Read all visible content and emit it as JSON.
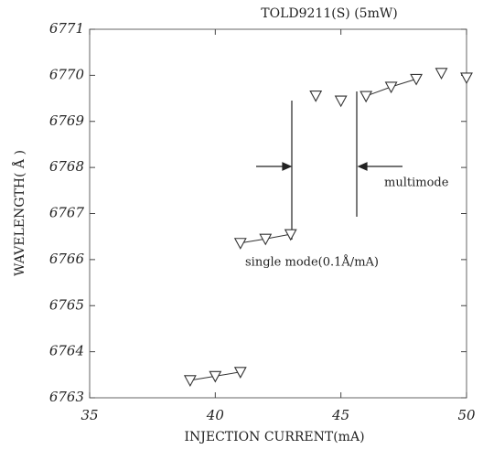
{
  "chart_data": {
    "type": "scatter",
    "title": "TOLD9211(S) (5mW)",
    "xlabel": "INJECTION CURRENT(mA)",
    "ylabel": "WAVELENGTH( Å )",
    "annotations": [
      "single mode(0.1Å/mA)",
      "multimode"
    ],
    "xlim": [
      35,
      50
    ],
    "xticks": [
      35,
      40,
      45,
      50
    ],
    "ylim": [
      6763,
      6771
    ],
    "yticks": [
      6763,
      6764,
      6765,
      6766,
      6767,
      6768,
      6769,
      6770,
      6771
    ],
    "color": "#333333",
    "grid": false,
    "series": [
      {
        "x": [
          39,
          40,
          41
        ],
        "values": [
          6763.38,
          6763.47,
          6763.56
        ],
        "connected": true
      },
      {
        "x": [
          41,
          42,
          43
        ],
        "values": [
          6766.36,
          6766.45,
          6766.55
        ],
        "connected": true
      },
      {
        "x": [
          44,
          45
        ],
        "values": [
          6769.56,
          6769.45
        ],
        "connected": false
      },
      {
        "x": [
          46,
          47,
          48
        ],
        "values": [
          6769.55,
          6769.75,
          6769.92
        ],
        "connected": true
      },
      {
        "x": [
          49,
          50
        ],
        "values": [
          6770.05,
          6769.95
        ],
        "connected": false
      }
    ]
  }
}
